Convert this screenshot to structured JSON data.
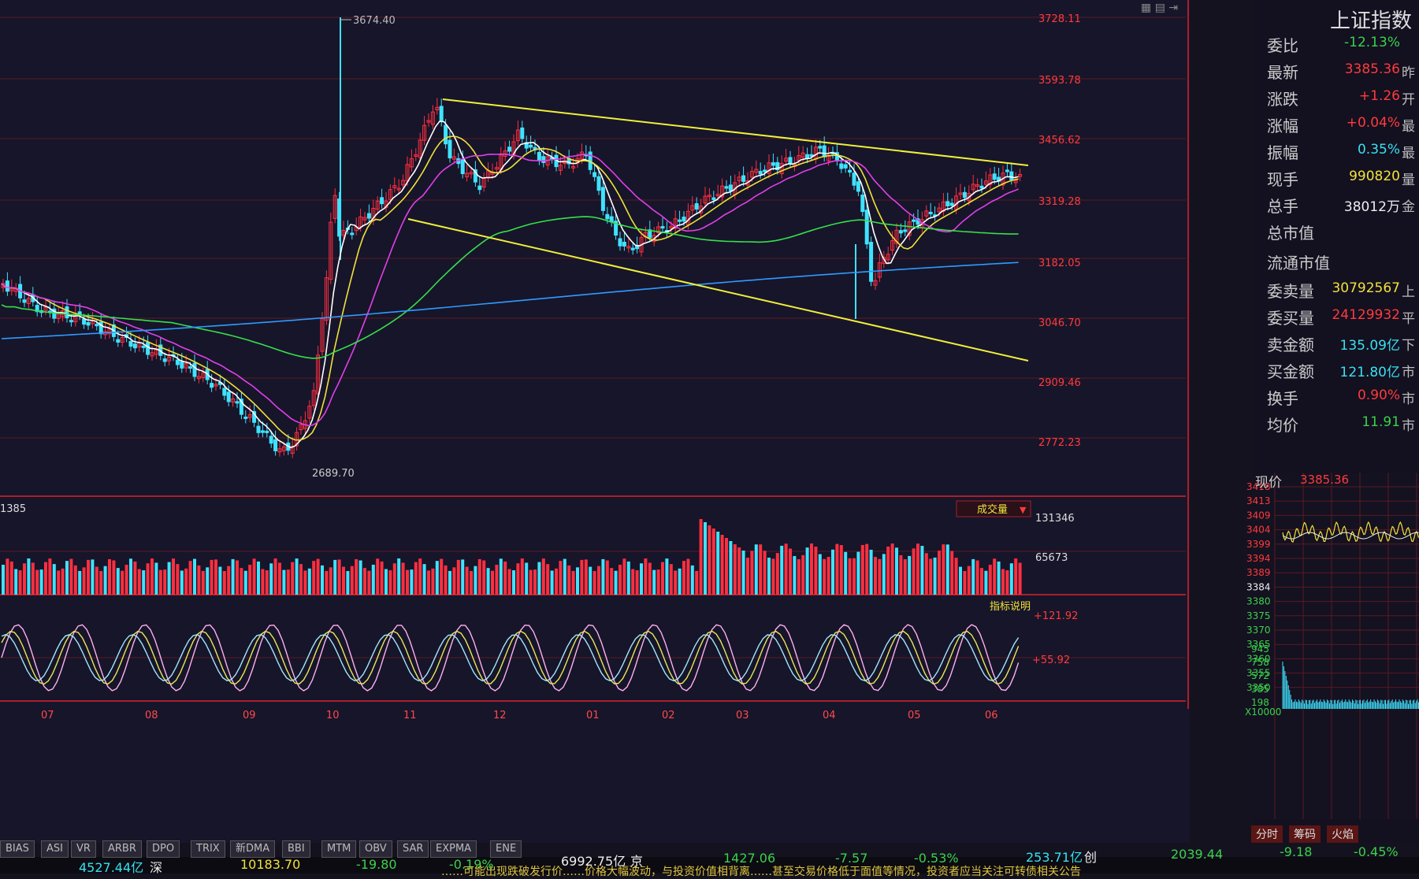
{
  "panel": {
    "title": "上证指数",
    "toolbar_icons": [
      "grid-icon",
      "info-icon",
      "exit-icon"
    ],
    "rows": [
      {
        "label": "委比",
        "value": "-12.13%",
        "color": "green",
        "suffix": ""
      },
      {
        "label": "最新",
        "value": "3385.36",
        "color": "red",
        "suffix": "昨"
      },
      {
        "label": "涨跌",
        "value": "+1.26",
        "color": "red",
        "suffix": "开"
      },
      {
        "label": "涨幅",
        "value": "+0.04%",
        "color": "red",
        "suffix": "最"
      },
      {
        "label": "振幅",
        "value": "0.35%",
        "color": "cyan",
        "suffix": "最"
      },
      {
        "label": "现手",
        "value": "990820",
        "color": "yellow",
        "suffix": "量"
      },
      {
        "label": "总手",
        "value": "38012万",
        "color": "white",
        "suffix": "金"
      },
      {
        "label": "总市值",
        "value": "",
        "color": "white",
        "suffix": ""
      },
      {
        "label": "流通市值",
        "value": "",
        "color": "white",
        "suffix": ""
      },
      {
        "label": "委卖量",
        "value": "30792567",
        "color": "yellow",
        "suffix": "上"
      },
      {
        "label": "委买量",
        "value": "24129932",
        "color": "red",
        "suffix": "平"
      },
      {
        "label": "卖金额",
        "value": "135.09亿",
        "color": "cyan",
        "suffix": "下"
      },
      {
        "label": "买金额",
        "value": "121.80亿",
        "color": "cyan",
        "suffix": "市"
      },
      {
        "label": "换手",
        "value": "0.90%",
        "color": "red",
        "suffix": "市"
      },
      {
        "label": "均价",
        "value": "11.91",
        "color": "green",
        "suffix": "市"
      }
    ],
    "current_price_label": "现价",
    "current_price_value": "3385.36",
    "intraday_price_ticks": [
      "3418",
      "3413",
      "3409",
      "3404",
      "3399",
      "3394",
      "3389",
      "3384",
      "3380",
      "3375",
      "3370",
      "3365",
      "3360",
      "3355",
      "3350"
    ],
    "intraday_volume_ticks": [
      "945",
      "758",
      "572",
      "385",
      "198"
    ],
    "volume_unit": "X10000",
    "mini_tabs": [
      "分时",
      "筹码",
      "火焰"
    ]
  },
  "main_chart": {
    "price_axis_labels": [
      "3728.11",
      "3593.78",
      "3456.62",
      "3319.28",
      "3182.05",
      "3046.70",
      "2909.46",
      "2772.23"
    ],
    "high_annotation": "3674.40",
    "low_annotation": "2689.70",
    "volume_panel_label": "1385",
    "volume_indicator_button": "成交量",
    "volume_axis_labels": [
      "131346",
      "65673"
    ],
    "indicator_help_label": "指标说明",
    "indicator_axis_labels": [
      "+121.92",
      "+55.92"
    ],
    "month_labels": [
      "07",
      "08",
      "09",
      "10",
      "11",
      "12",
      "01",
      "02",
      "03",
      "04",
      "05",
      "06"
    ]
  },
  "indicator_tabs": [
    "BIAS",
    "ASI",
    "VR",
    "ARBR",
    "DPO",
    "TRIX",
    "新DMA",
    "BBI",
    "MTM",
    "OBV",
    "SAR",
    "EXPMA",
    "ENE"
  ],
  "status_bar": {
    "sh_amount": "4527.44亿",
    "sh_suffix": "深",
    "sz_index": "10183.70",
    "sz_change": "-19.80",
    "sz_pct": "-0.19%",
    "sz_amount": "6992.75亿",
    "sz_suffix": "京",
    "bj_index": "1427.06",
    "bj_change": "-7.57",
    "bj_pct": "-0.53%",
    "cy_amount": "253.71亿",
    "cy_suffix": "创",
    "cy_index": "2039.44",
    "cy_change": "-9.18",
    "cy_pct": "-0.45%",
    "ticker_text": "……可能出现跌破发行价……价格大幅波动，与投资价值相背离……甚至交易价格低于面值等情况，投资者应当关注可转债相关公告"
  }
}
